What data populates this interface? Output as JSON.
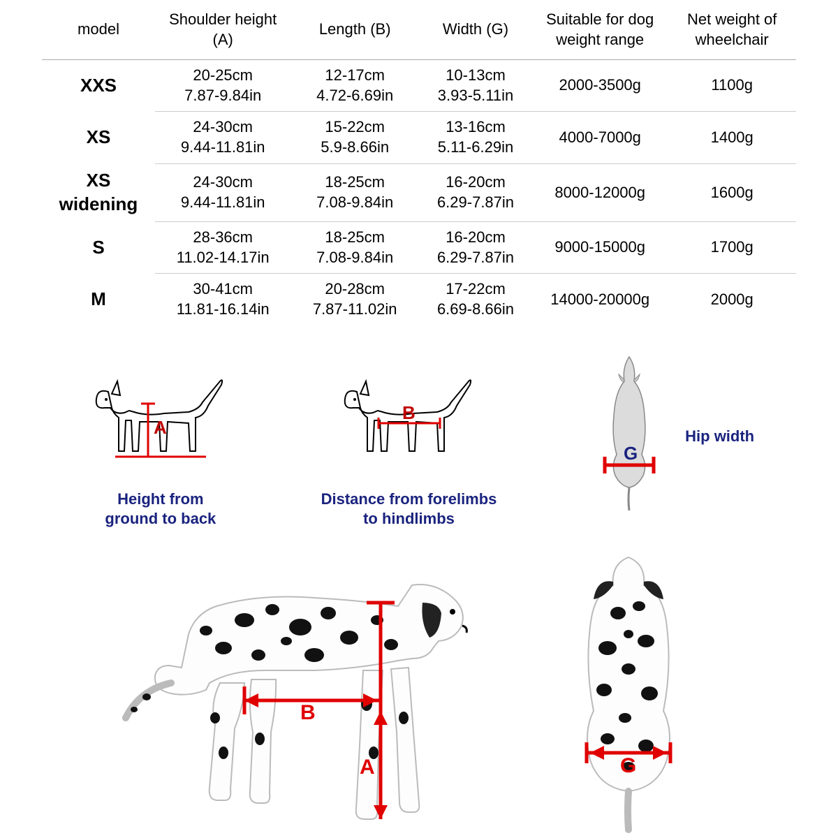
{
  "table": {
    "headers": {
      "model": "model",
      "shoulder": "Shoulder height (A)",
      "length": "Length (B)",
      "width": "Width (G)",
      "dogweight": "Suitable for dog weight range",
      "netweight": "Net weight of wheelchair"
    },
    "rows": [
      {
        "model": "XXS",
        "a_cm": "20-25cm",
        "a_in": "7.87-9.84in",
        "b_cm": "12-17cm",
        "b_in": "4.72-6.69in",
        "g_cm": "10-13cm",
        "g_in": "3.93-5.11in",
        "dogweight": "2000-3500g",
        "netweight": "1100g"
      },
      {
        "model": "XS",
        "a_cm": "24-30cm",
        "a_in": "9.44-11.81in",
        "b_cm": "15-22cm",
        "b_in": "5.9-8.66in",
        "g_cm": "13-16cm",
        "g_in": "5.11-6.29in",
        "dogweight": "4000-7000g",
        "netweight": "1400g"
      },
      {
        "model": "XS widening",
        "a_cm": "24-30cm",
        "a_in": "9.44-11.81in",
        "b_cm": "18-25cm",
        "b_in": "7.08-9.84in",
        "g_cm": "16-20cm",
        "g_in": "6.29-7.87in",
        "dogweight": "8000-12000g",
        "netweight": "1600g"
      },
      {
        "model": "S",
        "a_cm": "28-36cm",
        "a_in": "11.02-14.17in",
        "b_cm": "18-25cm",
        "b_in": "7.08-9.84in",
        "g_cm": "16-20cm",
        "g_in": "6.29-7.87in",
        "dogweight": "9000-15000g",
        "netweight": "1700g"
      },
      {
        "model": "M",
        "a_cm": "30-41cm",
        "a_in": "11.81-16.14in",
        "b_cm": "20-28cm",
        "b_in": "7.87-11.02in",
        "g_cm": "17-22cm",
        "g_in": "6.69-8.66in",
        "dogweight": "14000-20000g",
        "netweight": "2000g"
      }
    ]
  },
  "diagrams": {
    "a": {
      "letter": "A",
      "caption_l1": "Height from",
      "caption_l2": "ground to back"
    },
    "b": {
      "letter": "B",
      "caption_l1": "Distance from forelimbs",
      "caption_l2": "to hindlimbs"
    },
    "g": {
      "letter": "G",
      "caption": "Hip width"
    }
  },
  "photo_labels": {
    "a": "A",
    "b": "B",
    "g": "G"
  },
  "colors": {
    "red": "#e00000",
    "blue": "#1a237e",
    "border": "#cccccc",
    "headerborder": "#aaaaaa"
  }
}
